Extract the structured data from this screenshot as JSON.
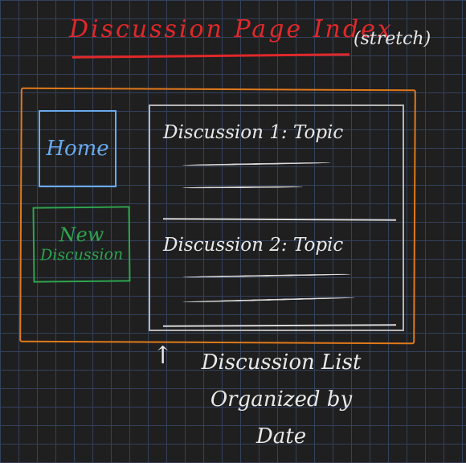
{
  "header": {
    "title": "Discussion Page Index",
    "note": "(stretch)"
  },
  "sidebar": {
    "home_label": "Home",
    "new_discussion_line1": "New",
    "new_discussion_line2": "Discussion"
  },
  "discussion_list": {
    "items": [
      {
        "topic": "Discussion 1: Topic"
      },
      {
        "topic": "Discussion 2: Topic"
      }
    ]
  },
  "annotation": {
    "arrow": "↑",
    "line1": "Discussion List",
    "line2": "Organized by",
    "line3": "Date"
  },
  "colors": {
    "background": "#1f1f1f",
    "grid": "#33415c",
    "title": "#e0282a",
    "frame": "#e0791b",
    "home": "#6aa9ee",
    "new_discussion": "#2ea44f",
    "list_border": "#b5b5b5",
    "ink": "#e8e8e8"
  }
}
